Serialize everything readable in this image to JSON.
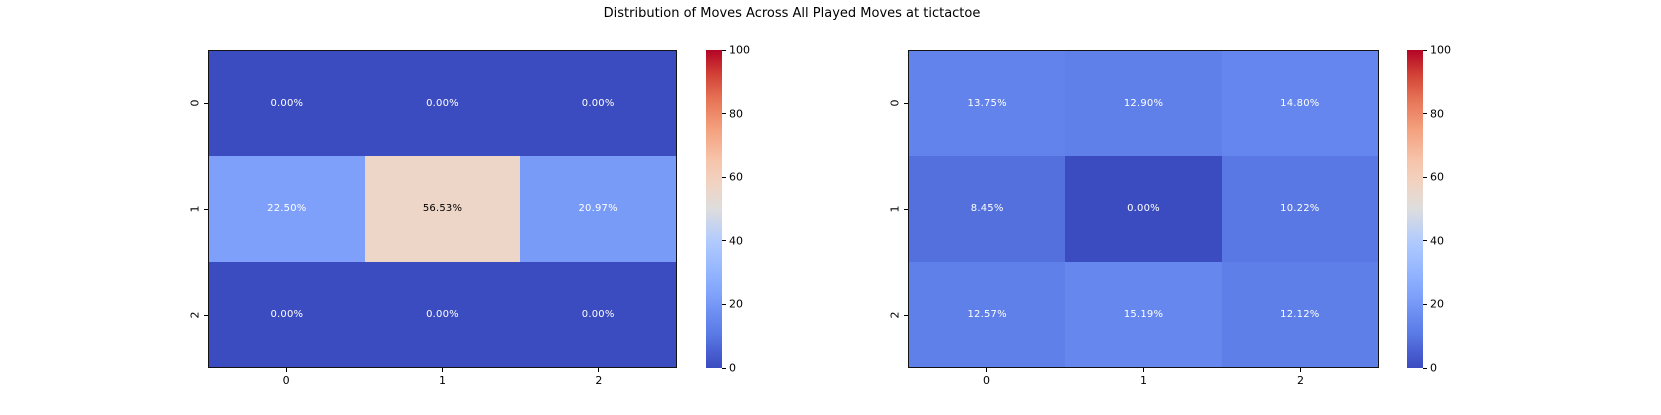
{
  "title": "Distribution of Moves Across All Played Moves at tictactoe",
  "chart_data": [
    {
      "type": "heatmap",
      "position": "left",
      "x_ticks": [
        "0",
        "1",
        "2"
      ],
      "y_ticks": [
        "0",
        "1",
        "2"
      ],
      "values": [
        [
          0.0,
          0.0,
          0.0
        ],
        [
          22.5,
          56.53,
          20.97
        ],
        [
          0.0,
          0.0,
          0.0
        ]
      ],
      "labels": [
        [
          "0.00%",
          "0.00%",
          "0.00%"
        ],
        [
          "22.50%",
          "56.53%",
          "20.97%"
        ],
        [
          "0.00%",
          "0.00%",
          "0.00%"
        ]
      ],
      "vmin": 0,
      "vmax": 100,
      "colormap": "coolwarm",
      "colormap_min_color": "#3B4CC0",
      "colormap_mid_color": "#DDDDDD",
      "colormap_max_color": "#B40426",
      "colorbar_ticks": [
        "0",
        "20",
        "40",
        "60",
        "80",
        "100"
      ],
      "grid": false,
      "legend": "colorbar-right"
    },
    {
      "type": "heatmap",
      "position": "right",
      "x_ticks": [
        "0",
        "1",
        "2"
      ],
      "y_ticks": [
        "0",
        "1",
        "2"
      ],
      "values": [
        [
          13.75,
          12.9,
          14.8
        ],
        [
          8.45,
          0.0,
          10.22
        ],
        [
          12.57,
          15.19,
          12.12
        ]
      ],
      "labels": [
        [
          "13.75%",
          "12.90%",
          "14.80%"
        ],
        [
          "8.45%",
          "0.00%",
          "10.22%"
        ],
        [
          "12.57%",
          "15.19%",
          "12.12%"
        ]
      ],
      "vmin": 0,
      "vmax": 100,
      "colormap": "coolwarm",
      "colormap_min_color": "#3B4CC0",
      "colormap_mid_color": "#DDDDDD",
      "colormap_max_color": "#B40426",
      "colorbar_ticks": [
        "0",
        "20",
        "40",
        "60",
        "80",
        "100"
      ],
      "grid": false,
      "legend": "colorbar-right"
    }
  ]
}
